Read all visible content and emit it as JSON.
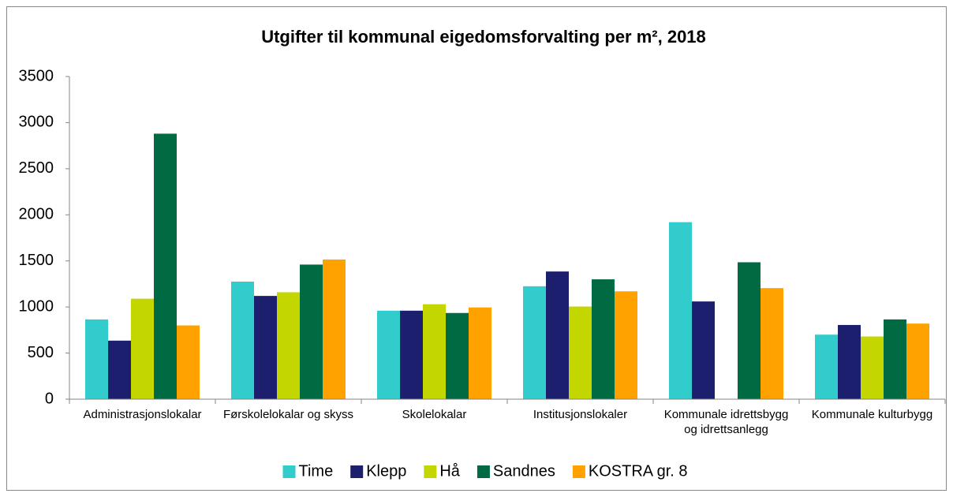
{
  "chart_data": {
    "type": "bar",
    "title": "Utgifter til kommunal eigedomsforvalting per m², 2018",
    "categories": [
      "Administrasjonslokalar",
      "Førskolelokalar og skyss",
      "Skolelokalar",
      "Institusjonslokaler",
      "Kommunale idrettsbygg og idrettsanlegg",
      "Kommunale kulturbygg"
    ],
    "series": [
      {
        "name": "Time",
        "color": "#33cccc",
        "values": [
          865,
          1275,
          960,
          1225,
          1920,
          700
        ]
      },
      {
        "name": "Klepp",
        "color": "#1c1f6e",
        "values": [
          635,
          1120,
          960,
          1385,
          1060,
          805
        ]
      },
      {
        "name": "Hå",
        "color": "#c4d600",
        "values": [
          1090,
          1160,
          1030,
          1005,
          null,
          680
        ]
      },
      {
        "name": "Sandnes",
        "color": "#006b42",
        "values": [
          2880,
          1460,
          935,
          1300,
          1485,
          865
        ]
      },
      {
        "name": "KOSTRA gr. 8",
        "color": "#ffa200",
        "values": [
          800,
          1515,
          995,
          1170,
          1205,
          820
        ]
      }
    ],
    "ylim": [
      0,
      3500
    ],
    "yticks": [
      0,
      500,
      1000,
      1500,
      2000,
      2500,
      3000,
      3500
    ],
    "legend": "bottom"
  }
}
